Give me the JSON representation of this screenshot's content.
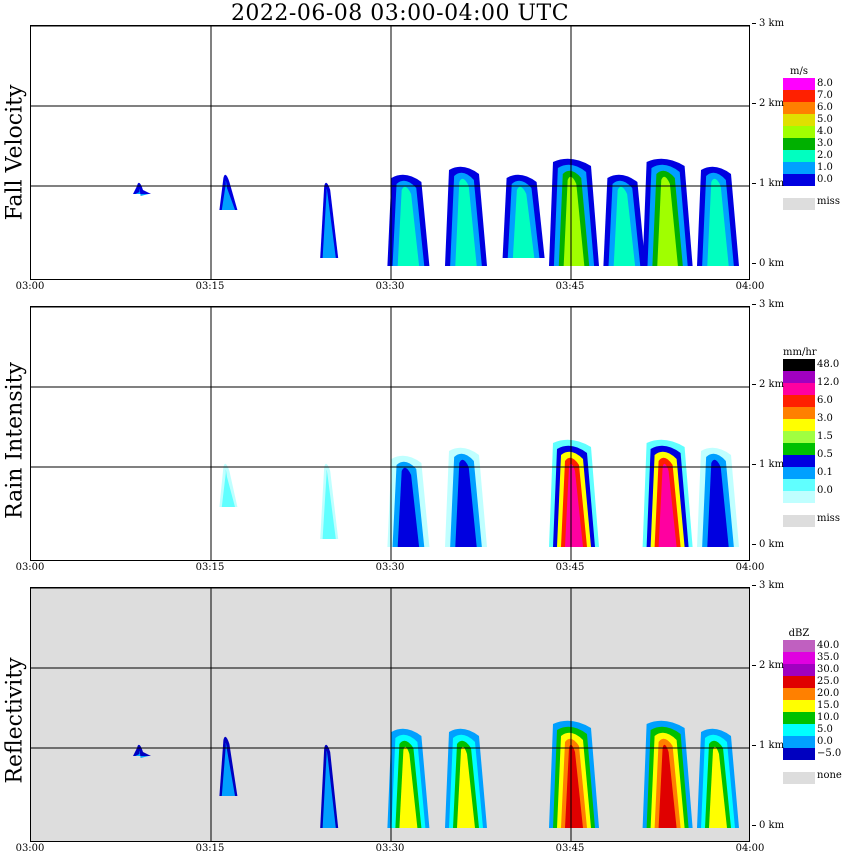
{
  "title": "2022-06-08   03:00-04:00 UTC",
  "time_ticks": [
    "03:00",
    "03:15",
    "03:30",
    "03:45",
    "04:00"
  ],
  "height_ticks": [
    "0 km",
    "1 km",
    "2 km",
    "3 km"
  ],
  "colors": {
    "grid": "#000000",
    "miss": "#dddddd"
  },
  "chart_data": [
    {
      "type": "heatmap",
      "title": "Fall Velocity",
      "ylabel": "Fall Velocity",
      "x_range": [
        "03:00",
        "04:00"
      ],
      "y_range_km": [
        0,
        3.2
      ],
      "unit": "m/s",
      "legend": {
        "levels": [
          "8.0",
          "7.0",
          "6.0",
          "5.0",
          "4.0",
          "3.0",
          "2.0",
          "1.0",
          "0.0"
        ],
        "colors": [
          "#ff00ff",
          "#ff2000",
          "#ff8000",
          "#e0e000",
          "#a0ff00",
          "#00b000",
          "#00ffc0",
          "#00a0ff",
          "#0000e0"
        ],
        "miss_label": "miss"
      },
      "echo_columns": [
        {
          "t": 3.15,
          "top": 1.0,
          "bot": 0.9,
          "cls": "lo"
        },
        {
          "t": 3.27,
          "top": 1.1,
          "bot": 0.7,
          "cls": "lo"
        },
        {
          "t": 3.41,
          "top": 1.0,
          "bot": 0.1,
          "cls": "lo"
        },
        {
          "t": 3.52,
          "top": 1.1,
          "bot": 0.0,
          "cls": "mid"
        },
        {
          "t": 3.6,
          "top": 1.2,
          "bot": 0.0,
          "cls": "mid"
        },
        {
          "t": 3.68,
          "top": 1.1,
          "bot": 0.1,
          "cls": "mid"
        },
        {
          "t": 3.75,
          "top": 1.3,
          "bot": 0.0,
          "cls": "hi"
        },
        {
          "t": 3.82,
          "top": 1.1,
          "bot": 0.0,
          "cls": "mid"
        },
        {
          "t": 3.88,
          "top": 1.3,
          "bot": 0.0,
          "cls": "hi"
        },
        {
          "t": 3.95,
          "top": 1.2,
          "bot": 0.0,
          "cls": "mid"
        }
      ]
    },
    {
      "type": "heatmap",
      "title": "Rain Intensity",
      "ylabel": "Rain Intensity",
      "x_range": [
        "03:00",
        "04:00"
      ],
      "y_range_km": [
        0,
        3.2
      ],
      "unit": "mm/hr",
      "legend": {
        "levels": [
          "48.0",
          "12.0",
          "6.0",
          "3.0",
          "1.5",
          "0.5",
          "0.1",
          "0.0"
        ],
        "colors": [
          "#000000",
          "#a000c0",
          "#ff00a0",
          "#ff2000",
          "#ff8000",
          "#ffff00",
          "#a0ff40",
          "#00c000",
          "#0000e0",
          "#00a0ff",
          "#60ffff",
          "#c0ffff"
        ],
        "miss_label": "miss"
      },
      "echo_columns": [
        {
          "t": 3.27,
          "top": 1.0,
          "bot": 0.5,
          "cls": "lo"
        },
        {
          "t": 3.41,
          "top": 1.0,
          "bot": 0.1,
          "cls": "lo"
        },
        {
          "t": 3.52,
          "top": 1.1,
          "bot": 0.0,
          "cls": "mid"
        },
        {
          "t": 3.6,
          "top": 1.2,
          "bot": 0.0,
          "cls": "mid"
        },
        {
          "t": 3.75,
          "top": 1.3,
          "bot": 0.0,
          "cls": "hi"
        },
        {
          "t": 3.88,
          "top": 1.3,
          "bot": 0.0,
          "cls": "hi"
        },
        {
          "t": 3.95,
          "top": 1.2,
          "bot": 0.0,
          "cls": "mid"
        }
      ]
    },
    {
      "type": "heatmap",
      "title": "Reflectivity",
      "ylabel": "Reflectivity",
      "x_range": [
        "03:00",
        "04:00"
      ],
      "y_range_km": [
        0,
        3.2
      ],
      "unit": "dBZ",
      "legend": {
        "levels": [
          "40.0",
          "35.0",
          "30.0",
          "25.0",
          "20.0",
          "15.0",
          "10.0",
          "5.0",
          "0.0",
          "−5.0"
        ],
        "colors": [
          "#c060c0",
          "#e000e0",
          "#a000c0",
          "#e00000",
          "#ff8000",
          "#ffff00",
          "#00c000",
          "#00ffff",
          "#00a0ff",
          "#0000c0"
        ],
        "miss_label": "none"
      },
      "echo_columns": [
        {
          "t": 3.15,
          "top": 1.0,
          "bot": 0.9,
          "cls": "lo"
        },
        {
          "t": 3.27,
          "top": 1.1,
          "bot": 0.4,
          "cls": "lo"
        },
        {
          "t": 3.41,
          "top": 1.0,
          "bot": 0.0,
          "cls": "lo"
        },
        {
          "t": 3.52,
          "top": 1.2,
          "bot": 0.0,
          "cls": "mid"
        },
        {
          "t": 3.6,
          "top": 1.2,
          "bot": 0.0,
          "cls": "mid"
        },
        {
          "t": 3.75,
          "top": 1.3,
          "bot": 0.0,
          "cls": "hi"
        },
        {
          "t": 3.88,
          "top": 1.3,
          "bot": 0.0,
          "cls": "hi"
        },
        {
          "t": 3.95,
          "top": 1.2,
          "bot": 0.0,
          "cls": "mid"
        }
      ]
    }
  ]
}
